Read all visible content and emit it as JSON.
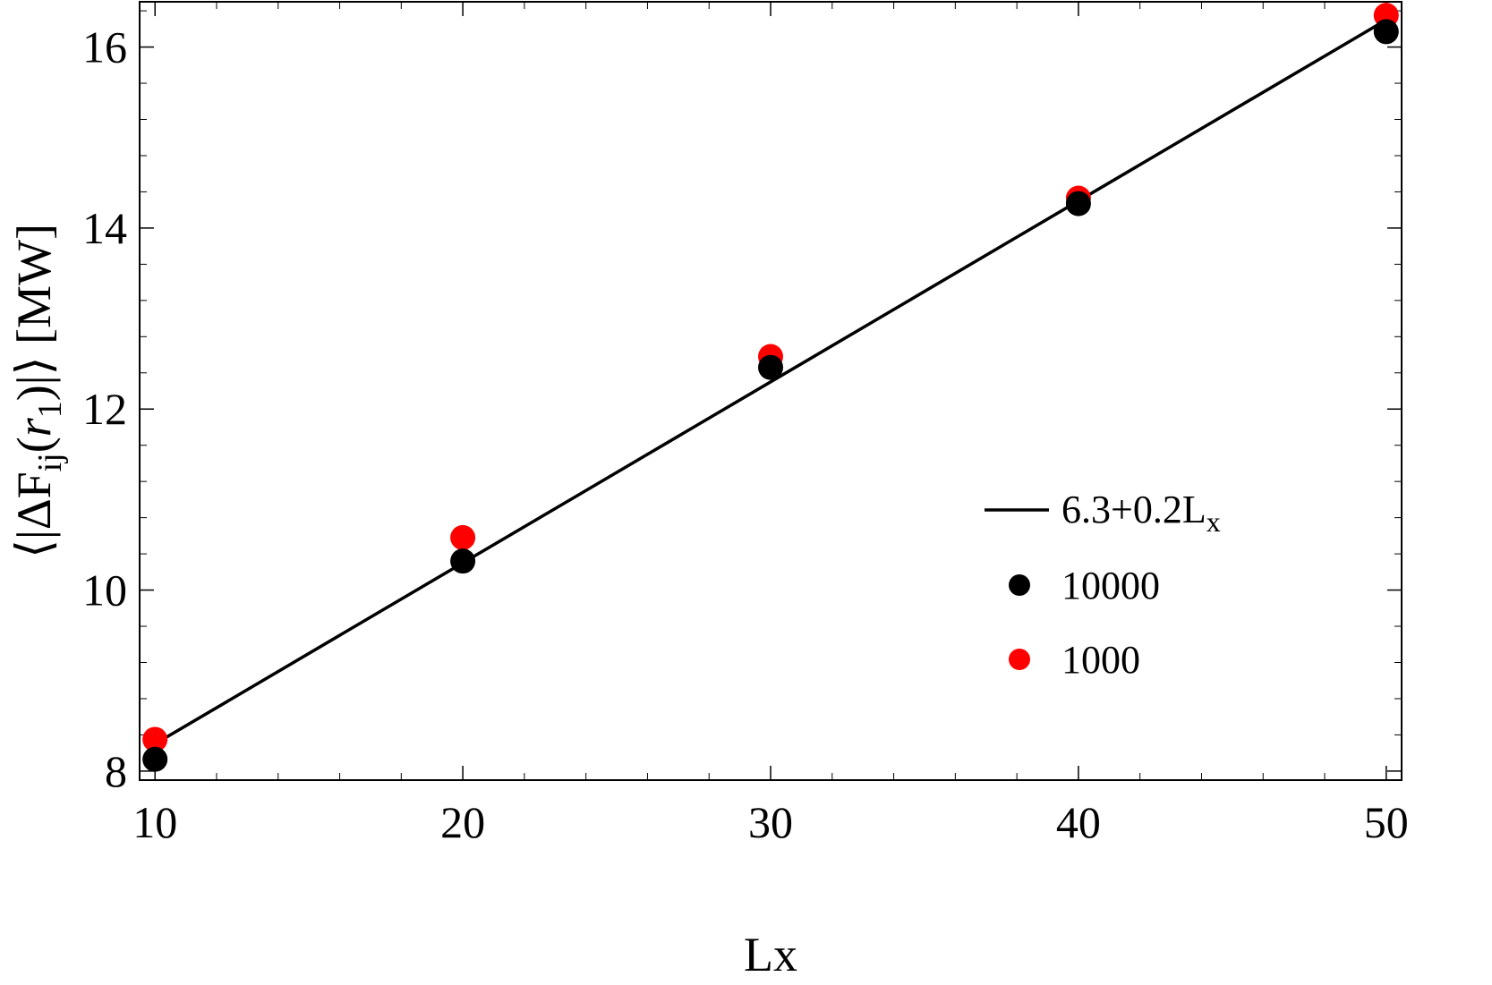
{
  "chart_data": {
    "type": "scatter",
    "xlabel": "Lx",
    "ylabel": {
      "prefix": "⟨|ΔF",
      "sub": "ij",
      "middle": "(",
      "var": "r",
      "varsub": "1",
      "suffix": ")|⟩ [MW]"
    },
    "xlim": [
      9.5,
      50.5
    ],
    "ylim": [
      7.9,
      16.5
    ],
    "x_ticks": [
      10,
      20,
      30,
      40,
      50
    ],
    "x_tick_labels": [
      "10",
      "20",
      "30",
      "40",
      "50"
    ],
    "y_ticks": [
      8,
      10,
      12,
      14,
      16
    ],
    "y_tick_labels": [
      "8",
      "10",
      "12",
      "14",
      "16"
    ],
    "x_minor_step": 2,
    "y_minor_step": 0.4,
    "grid": false,
    "legend_placement": "right",
    "fit_line": {
      "label_prefix": "6.3+0.2L",
      "label_sub": "x",
      "intercept": 6.3,
      "slope": 0.2,
      "x_range": [
        10,
        50
      ],
      "color": "#000000"
    },
    "series": [
      {
        "name": "1000",
        "color": "#ff0000",
        "x": [
          10,
          20,
          30,
          40,
          50
        ],
        "y": [
          8.35,
          10.58,
          12.58,
          14.33,
          16.35
        ]
      },
      {
        "name": "10000",
        "color": "#000000",
        "x": [
          10,
          20,
          30,
          40,
          50
        ],
        "y": [
          8.13,
          10.32,
          12.46,
          14.27,
          16.17
        ]
      }
    ],
    "legend_order": [
      1,
      0
    ]
  }
}
